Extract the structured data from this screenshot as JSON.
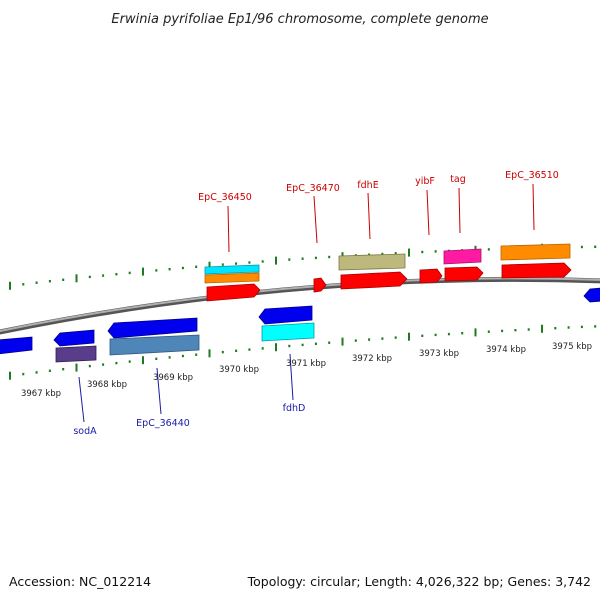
{
  "title": "Erwinia pyrifoliae Ep1/96 chromosome, complete genome",
  "footer": {
    "accession": "Accession: NC_012214",
    "summary": "Topology: circular; Length: 4,026,322 bp; Genes: 3,742"
  },
  "scale": {
    "ticks": [
      "3967 kbp",
      "3968 kbp",
      "3969 kbp",
      "3970 kbp",
      "3971 kbp",
      "3972 kbp",
      "3973 kbp",
      "3974 kbp",
      "3975 kbp"
    ]
  },
  "gene_labels_top": [
    "EpC_36450",
    "EpC_36470",
    "fdhE",
    "yibF",
    "tag",
    "EpC_36510"
  ],
  "gene_labels_bottom": [
    "sodA",
    "EpC_36440",
    "fdhD"
  ],
  "colors": {
    "backbone": "#8a8a8a",
    "tick_marks": "#1e7a1e",
    "forward_cds": "#ff0000",
    "reverse_cds": "#0000ee",
    "label_top": "#cc0000",
    "label_bottom": "#1a1aa8",
    "cyan": "#00ffff",
    "orange": "#ff8c00",
    "khaki": "#b5b27a",
    "magenta": "#ff1aa3",
    "steelblue": "#4f86b8",
    "slate": "#5a3d8a"
  }
}
